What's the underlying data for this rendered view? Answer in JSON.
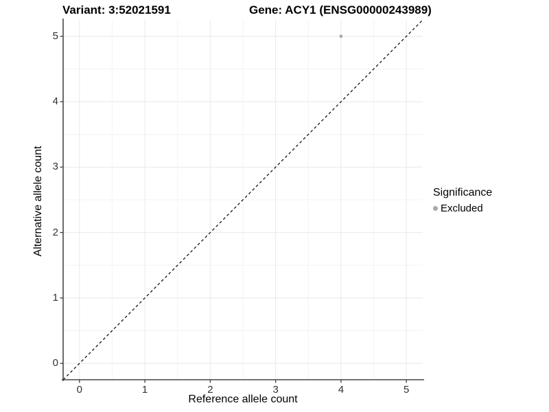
{
  "chart_data": {
    "type": "scatter",
    "title_left": "Variant: 3:52021591",
    "title_right": "Gene: ACY1 (ENSG00000243989)",
    "xlabel": "Reference allele count",
    "ylabel": "Alternative allele count",
    "xlim": [
      -0.25,
      5.25
    ],
    "ylim": [
      -0.25,
      5.25
    ],
    "x_ticks": [
      0,
      1,
      2,
      3,
      4,
      5
    ],
    "y_ticks": [
      0,
      1,
      2,
      3,
      4,
      5
    ],
    "x_minor_ticks": [
      0.5,
      1.5,
      2.5,
      3.5,
      4.5
    ],
    "y_minor_ticks": [
      0.5,
      1.5,
      2.5,
      3.5,
      4.5
    ],
    "grid": "on",
    "points": [
      {
        "x": 4,
        "y": 5,
        "significance": "Excluded"
      }
    ],
    "reference_line": {
      "slope": 1,
      "intercept": 0,
      "style": "dashed",
      "color": "#000000"
    },
    "legend": {
      "title": "Significance",
      "position": "right",
      "items": [
        {
          "label": "Excluded",
          "color": "#a9a9a9"
        }
      ]
    },
    "colors": {
      "background": "#ffffff",
      "axis_line": "#474747",
      "tick_mark": "#474747",
      "tick_label": "#303030",
      "title_text": "#000000",
      "grid_major": "#e8e8e8",
      "grid_minor": "#f3f3f3",
      "point_excluded": "#a9a9a9"
    }
  }
}
